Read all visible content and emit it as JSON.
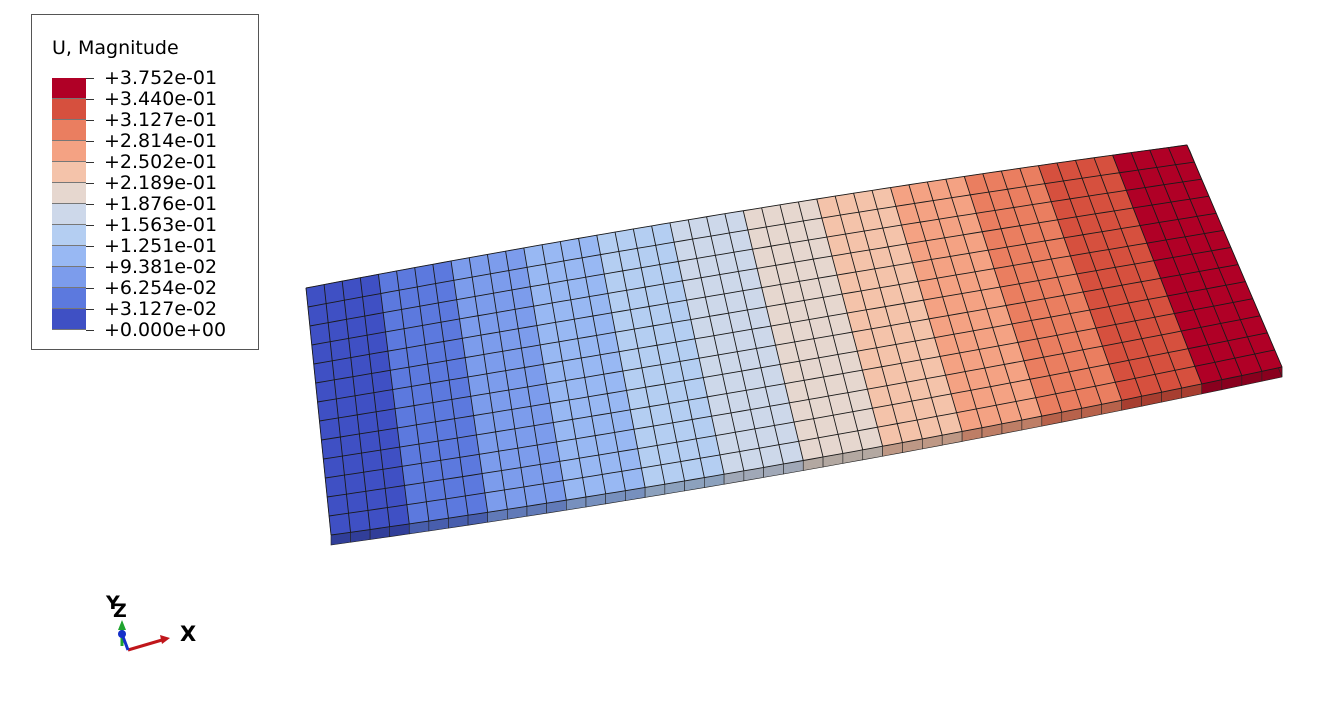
{
  "legend": {
    "title": "U, Magnitude",
    "colors": [
      "#B00026",
      "#D6503E",
      "#EA7E60",
      "#F4A283",
      "#F4C3AA",
      "#E6D7CF",
      "#CDD8EA",
      "#B4CEF2",
      "#98B8F3",
      "#7C9CEC",
      "#5C79DE",
      "#3F50C4"
    ],
    "labels": [
      "+3.752e-01",
      "+3.440e-01",
      "+3.127e-01",
      "+2.814e-01",
      "+2.502e-01",
      "+2.189e-01",
      "+1.876e-01",
      "+1.563e-01",
      "+1.251e-01",
      "+9.381e-02",
      "+6.254e-02",
      "+3.127e-02",
      "+0.000e+00"
    ]
  },
  "triad": {
    "x_label": "X",
    "y_label": "Y",
    "z_label": "Z",
    "x_color": "#C0161B",
    "y_color": "#1FA32E",
    "z_color": "#1430C8"
  },
  "mesh": {
    "columns": 48,
    "rows": 13,
    "max_value": 0.3752,
    "min_value": 0.0
  }
}
